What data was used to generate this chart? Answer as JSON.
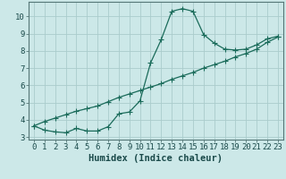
{
  "xlabel": "Humidex (Indice chaleur)",
  "background_color": "#cce8e8",
  "grid_color": "#aacccc",
  "line_color": "#1a6b5a",
  "x_values": [
    0,
    1,
    2,
    3,
    4,
    5,
    6,
    7,
    8,
    9,
    10,
    11,
    12,
    13,
    14,
    15,
    16,
    17,
    18,
    19,
    20,
    21,
    22,
    23
  ],
  "y_curve": [
    3.65,
    3.4,
    3.3,
    3.25,
    3.5,
    3.35,
    3.35,
    3.6,
    4.35,
    4.45,
    5.1,
    7.3,
    8.65,
    10.3,
    10.45,
    10.3,
    8.95,
    8.45,
    8.1,
    8.05,
    8.1,
    8.35,
    8.7,
    8.85
  ],
  "y_line": [
    3.65,
    3.9,
    4.1,
    4.3,
    4.5,
    4.65,
    4.8,
    5.05,
    5.3,
    5.5,
    5.7,
    5.9,
    6.1,
    6.35,
    6.55,
    6.75,
    7.0,
    7.2,
    7.4,
    7.65,
    7.85,
    8.1,
    8.5,
    8.8
  ],
  "xlim": [
    -0.5,
    23.5
  ],
  "ylim": [
    2.85,
    10.85
  ],
  "yticks": [
    3,
    4,
    5,
    6,
    7,
    8,
    9,
    10
  ],
  "xticks": [
    0,
    1,
    2,
    3,
    4,
    5,
    6,
    7,
    8,
    9,
    10,
    11,
    12,
    13,
    14,
    15,
    16,
    17,
    18,
    19,
    20,
    21,
    22,
    23
  ],
  "markersize": 2.5,
  "linewidth": 0.9,
  "xlabel_fontsize": 7.5,
  "tick_fontsize": 6.5
}
